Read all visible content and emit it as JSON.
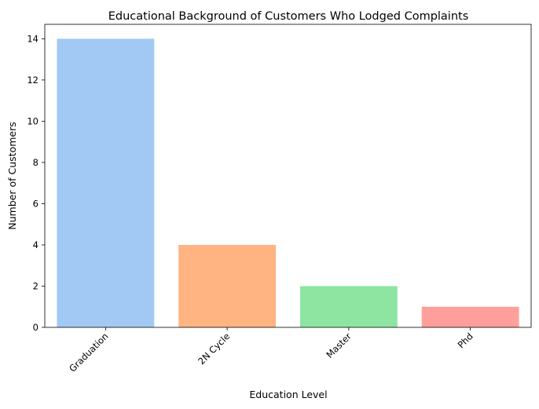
{
  "chart_data": {
    "type": "bar",
    "title": "Educational Background of Customers Who Lodged Complaints",
    "xlabel": "Education Level",
    "ylabel": "Number of Customers",
    "categories": [
      "Graduation",
      "2N Cycle",
      "Master",
      "Phd"
    ],
    "values": [
      14,
      4,
      2,
      1
    ],
    "colors": [
      "#a1c9f4",
      "#ffb482",
      "#8de5a1",
      "#ff9f9b"
    ],
    "ylim": [
      0,
      14.7
    ],
    "yticks": [
      0,
      2,
      4,
      6,
      8,
      10,
      12,
      14
    ],
    "grid": false,
    "legend": "none"
  }
}
